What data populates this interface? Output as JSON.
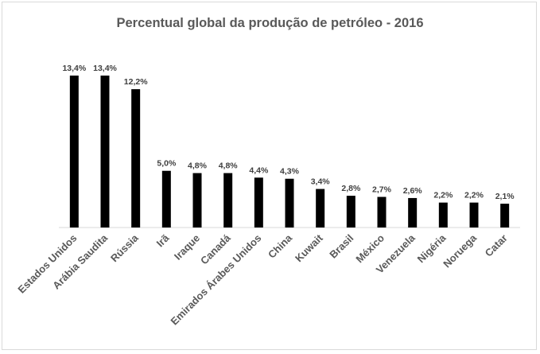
{
  "chart_data": {
    "type": "bar",
    "title": "Percentual global da produção de petróleo - 2016",
    "xlabel": "",
    "ylabel": "",
    "categories": [
      "Estados Unidos",
      "Arábia Saudita",
      "Rússia",
      "Irã",
      "Iraque",
      "Canadá",
      "Emirados Árabes Unidos",
      "China",
      "Kuwait",
      "Brasil",
      "México",
      "Venezuela",
      "Nigéria",
      "Noruega",
      "Catar"
    ],
    "values": [
      13.4,
      13.4,
      12.2,
      5.0,
      4.8,
      4.8,
      4.4,
      4.3,
      3.4,
      2.8,
      2.7,
      2.6,
      2.2,
      2.2,
      2.1
    ],
    "value_labels": [
      "13,4%",
      "13,4%",
      "12,2%",
      "5,0%",
      "4,8%",
      "4,8%",
      "4,4%",
      "4,3%",
      "3,4%",
      "2,8%",
      "2,7%",
      "2,6%",
      "2,2%",
      "2,2%",
      "2,1%"
    ],
    "ylim": [
      0,
      13.4
    ],
    "grid": false,
    "legend": "none",
    "colors": {
      "bar": "#000000",
      "axis": "#d9d9d9",
      "title": "#595959",
      "label": "#404040"
    }
  }
}
